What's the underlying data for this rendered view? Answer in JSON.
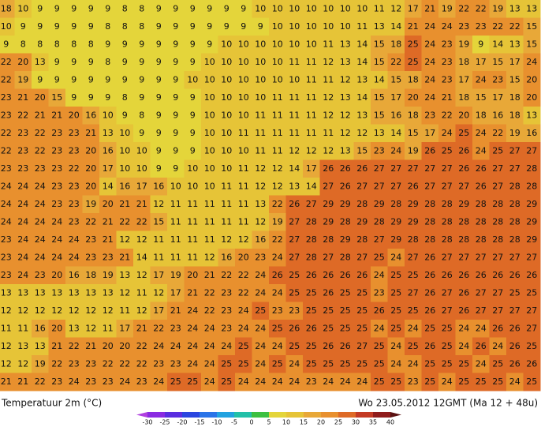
{
  "map": {
    "grid": [
      [
        18,
        10,
        9,
        9,
        9,
        9,
        9,
        8,
        8,
        9,
        9,
        9,
        9,
        9,
        9,
        10,
        10,
        10,
        10,
        10,
        10,
        10,
        11,
        12,
        17,
        21,
        19,
        22,
        22,
        19,
        13,
        13
      ],
      [
        10,
        9,
        9,
        9,
        9,
        9,
        8,
        8,
        8,
        9,
        9,
        9,
        9,
        9,
        9,
        9,
        10,
        10,
        10,
        10,
        10,
        11,
        13,
        14,
        21,
        24,
        24,
        23,
        23,
        22,
        22,
        15
      ],
      [
        9,
        8,
        8,
        8,
        8,
        8,
        9,
        9,
        9,
        9,
        9,
        9,
        9,
        10,
        10,
        10,
        10,
        10,
        10,
        11,
        13,
        14,
        15,
        18,
        25,
        24,
        23,
        19,
        9,
        14,
        13,
        15
      ],
      [
        22,
        20,
        13,
        9,
        9,
        9,
        8,
        9,
        9,
        9,
        9,
        9,
        10,
        10,
        10,
        10,
        10,
        11,
        11,
        12,
        13,
        14,
        15,
        22,
        25,
        24,
        23,
        18,
        17,
        15,
        17,
        24
      ],
      [
        22,
        19,
        9,
        9,
        9,
        9,
        9,
        9,
        9,
        9,
        9,
        10,
        10,
        10,
        10,
        10,
        10,
        10,
        11,
        11,
        12,
        13,
        14,
        15,
        18,
        24,
        23,
        17,
        24,
        23,
        15,
        20
      ],
      [
        23,
        21,
        20,
        15,
        9,
        9,
        9,
        8,
        9,
        9,
        9,
        9,
        10,
        10,
        10,
        10,
        11,
        11,
        11,
        12,
        13,
        14,
        15,
        17,
        20,
        24,
        21,
        18,
        15,
        17,
        18,
        20
      ],
      [
        23,
        22,
        21,
        21,
        20,
        16,
        10,
        9,
        8,
        9,
        9,
        9,
        10,
        10,
        10,
        11,
        11,
        11,
        11,
        12,
        12,
        13,
        15,
        16,
        18,
        23,
        22,
        20,
        18,
        16,
        18,
        13
      ],
      [
        22,
        23,
        22,
        23,
        23,
        21,
        13,
        10,
        9,
        9,
        9,
        9,
        10,
        10,
        11,
        11,
        11,
        11,
        11,
        11,
        12,
        12,
        13,
        14,
        15,
        17,
        24,
        25,
        24,
        22,
        19,
        16
      ],
      [
        22,
        23,
        22,
        23,
        23,
        20,
        16,
        10,
        10,
        9,
        9,
        9,
        10,
        10,
        10,
        11,
        11,
        12,
        12,
        12,
        13,
        15,
        23,
        24,
        19,
        26,
        25,
        26,
        24,
        25,
        27,
        27
      ],
      [
        23,
        23,
        23,
        23,
        22,
        20,
        17,
        10,
        10,
        9,
        9,
        10,
        10,
        10,
        11,
        12,
        12,
        14,
        17,
        26,
        26,
        26,
        27,
        27,
        27,
        27,
        27,
        26,
        26,
        27,
        27,
        28
      ],
      [
        24,
        24,
        24,
        23,
        23,
        20,
        14,
        16,
        17,
        16,
        10,
        10,
        10,
        11,
        11,
        12,
        12,
        13,
        14,
        27,
        26,
        27,
        27,
        27,
        26,
        27,
        27,
        27,
        26,
        27,
        28,
        28
      ],
      [
        24,
        24,
        24,
        23,
        23,
        19,
        20,
        21,
        21,
        12,
        11,
        11,
        11,
        11,
        11,
        13,
        22,
        26,
        27,
        29,
        29,
        28,
        29,
        28,
        29,
        28,
        28,
        29,
        28,
        28,
        28,
        29
      ],
      [
        24,
        24,
        24,
        24,
        23,
        22,
        21,
        22,
        22,
        15,
        11,
        11,
        11,
        11,
        11,
        12,
        19,
        27,
        28,
        29,
        28,
        29,
        28,
        29,
        29,
        28,
        28,
        28,
        28,
        28,
        28,
        29
      ],
      [
        23,
        24,
        24,
        24,
        24,
        23,
        21,
        12,
        12,
        11,
        11,
        11,
        11,
        12,
        12,
        16,
        22,
        27,
        28,
        28,
        29,
        28,
        27,
        29,
        28,
        28,
        28,
        28,
        28,
        28,
        28,
        29
      ],
      [
        23,
        24,
        24,
        24,
        24,
        23,
        23,
        21,
        14,
        11,
        11,
        11,
        12,
        16,
        20,
        23,
        24,
        27,
        28,
        27,
        28,
        27,
        25,
        24,
        27,
        26,
        27,
        27,
        27,
        27,
        27,
        27
      ],
      [
        23,
        24,
        23,
        20,
        16,
        18,
        19,
        13,
        12,
        17,
        19,
        20,
        21,
        22,
        22,
        24,
        26,
        25,
        26,
        26,
        26,
        26,
        24,
        25,
        25,
        26,
        26,
        26,
        26,
        26,
        26,
        26
      ],
      [
        13,
        13,
        13,
        13,
        13,
        13,
        13,
        12,
        11,
        12,
        17,
        21,
        22,
        23,
        22,
        24,
        24,
        25,
        25,
        26,
        25,
        25,
        23,
        25,
        27,
        26,
        27,
        26,
        27,
        27,
        25,
        25
      ],
      [
        12,
        12,
        12,
        12,
        12,
        12,
        12,
        11,
        12,
        17,
        21,
        24,
        22,
        23,
        24,
        25,
        23,
        23,
        25,
        25,
        25,
        25,
        26,
        25,
        25,
        26,
        27,
        26,
        27,
        27,
        27,
        27
      ],
      [
        11,
        11,
        16,
        20,
        13,
        12,
        11,
        17,
        21,
        22,
        23,
        24,
        24,
        23,
        24,
        24,
        25,
        26,
        26,
        25,
        25,
        25,
        24,
        25,
        24,
        25,
        25,
        24,
        24,
        26,
        26,
        27
      ],
      [
        12,
        13,
        13,
        21,
        22,
        21,
        20,
        20,
        22,
        24,
        24,
        24,
        24,
        24,
        25,
        24,
        24,
        25,
        25,
        26,
        26,
        27,
        25,
        24,
        25,
        26,
        25,
        24,
        26,
        24,
        26,
        25
      ],
      [
        12,
        12,
        19,
        22,
        23,
        23,
        22,
        22,
        22,
        23,
        23,
        24,
        24,
        25,
        25,
        24,
        25,
        24,
        25,
        25,
        25,
        25,
        25,
        24,
        24,
        25,
        25,
        25,
        24,
        25,
        26,
        26
      ],
      [
        21,
        21,
        22,
        23,
        24,
        23,
        23,
        24,
        23,
        24,
        25,
        25,
        24,
        25,
        24,
        24,
        24,
        24,
        23,
        24,
        24,
        24,
        25,
        25,
        23,
        25,
        24,
        25,
        25,
        25,
        24,
        25
      ]
    ]
  },
  "footer": {
    "variable": "Temperatuur 2m (°C)",
    "valid": "Wo 23.05.2012 12GMT (Ma 12 + 48u)"
  },
  "legend": {
    "ticks": [
      -30,
      -25,
      -20,
      -15,
      -10,
      -5,
      0,
      5,
      10,
      15,
      20,
      25,
      30,
      35,
      40
    ],
    "colors": [
      "#8a2be2",
      "#5a2ee0",
      "#2a46e0",
      "#2a74e8",
      "#22a2e0",
      "#22c0a8",
      "#3cc040",
      "#e4d53a",
      "#e6c437",
      "#e8a838",
      "#e8902e",
      "#de6a26",
      "#c43a24",
      "#901c1c"
    ],
    "under": "#b040e0",
    "over": "#5a1010"
  }
}
